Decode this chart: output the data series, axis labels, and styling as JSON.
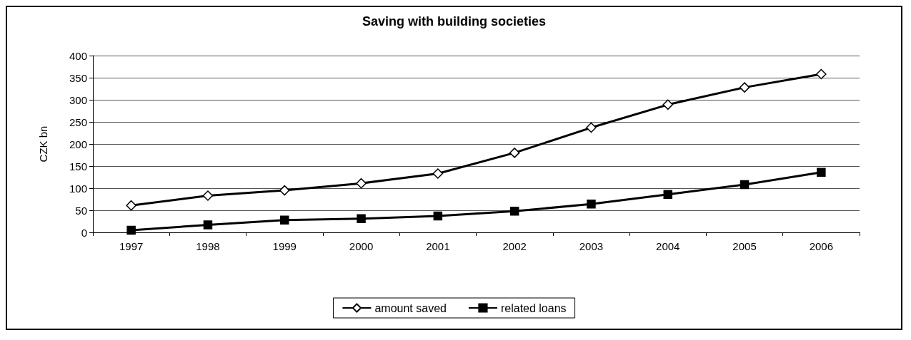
{
  "chart_data": {
    "type": "line",
    "title": "Saving with building societies",
    "ylabel": "CZK bn",
    "categories": [
      "1997",
      "1998",
      "1999",
      "2000",
      "2001",
      "2002",
      "2003",
      "2004",
      "2005",
      "2006"
    ],
    "series": [
      {
        "name": "amount saved",
        "color": "#000000",
        "marker": "diamond",
        "values": [
          61,
          83,
          95,
          111,
          133,
          180,
          237,
          289,
          328,
          358
        ]
      },
      {
        "name": "related loans",
        "color": "#000000",
        "marker": "square",
        "values": [
          5,
          17,
          28,
          31,
          37,
          48,
          64,
          86,
          108,
          136
        ]
      }
    ],
    "ylim": [
      0,
      400
    ],
    "yticks": [
      0,
      50,
      100,
      150,
      200,
      250,
      300,
      350,
      400
    ],
    "grid": "y",
    "legend": "bottom",
    "line_style": "solid"
  }
}
